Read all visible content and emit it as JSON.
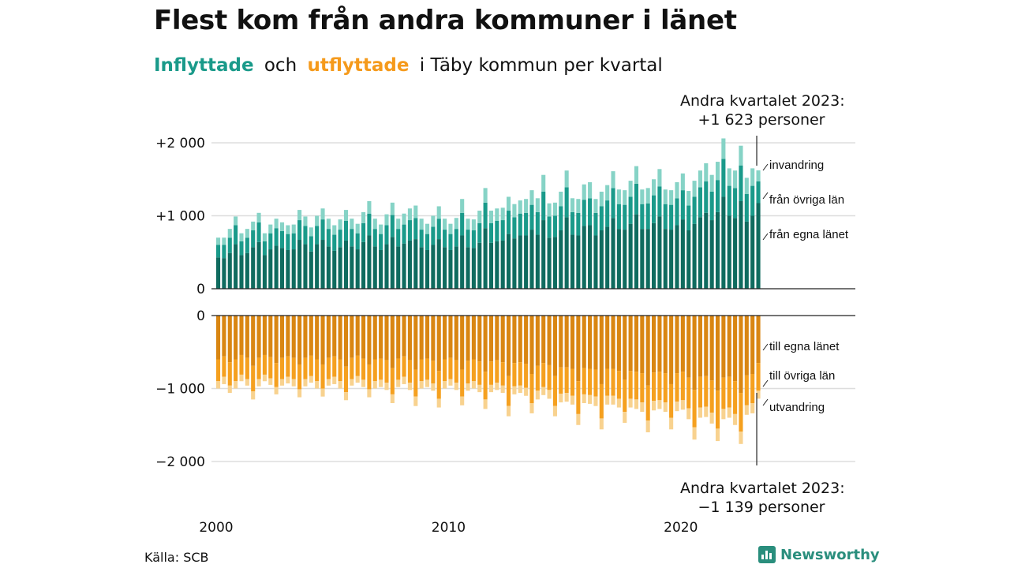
{
  "header": {
    "title": "Flest kom från andra kommuner i länet",
    "subtitle_in": "Inflyttade",
    "subtitle_and": "och",
    "subtitle_out": "utflyttade",
    "subtitle_rest": "i Täby kommun per kvartal"
  },
  "callouts": {
    "top_line1": "Andra kvartalet 2023:",
    "top_line2": "+1 623 personer",
    "bottom_line1": "Andra kvartalet 2023:",
    "bottom_line2": "−1 139 personer"
  },
  "footer": {
    "source": "Källa: SCB",
    "brand": "Newsworthy"
  },
  "colors": {
    "in_egna": "#0f6b5f",
    "in_ovriga": "#1a9a8a",
    "in_invandring": "#86d3c6",
    "out_egna": "#d98612",
    "out_ovriga": "#f5a01f",
    "out_utvandring": "#f8d28f",
    "subtitle_in": "#1a9a8a",
    "subtitle_out": "#f59a1b",
    "brand": "#2a8e7d"
  },
  "chart_data": {
    "type": "bar",
    "stacked": true,
    "x_start": "2000 Q1",
    "x_end": "2023 Q2",
    "frequency": "quarterly",
    "x_tick_labels": [
      "2000",
      "2010",
      "2020"
    ],
    "y_ticks_top": [
      "+2 000",
      "+1 000",
      "0"
    ],
    "y_ticks_bottom": [
      "0",
      "−1 000",
      "−2 000"
    ],
    "grid": true,
    "panels": [
      {
        "name": "Inflyttade",
        "ylim": [
          0,
          2000
        ],
        "total_series": [
          700,
          700,
          820,
          990,
          760,
          820,
          920,
          1040,
          760,
          880,
          960,
          910,
          870,
          880,
          1080,
          990,
          840,
          1000,
          1100,
          960,
          870,
          950,
          1080,
          960,
          890,
          1050,
          1200,
          960,
          880,
          1020,
          1180,
          960,
          1030,
          1100,
          1140,
          960,
          890,
          1000,
          1130,
          960,
          890,
          970,
          1230,
          960,
          950,
          1070,
          1380,
          1070,
          1100,
          1110,
          1260,
          1160,
          1210,
          1230,
          1350,
          1240,
          1560,
          1170,
          1180,
          1330,
          1620,
          1240,
          1230,
          1430,
          1460,
          1230,
          1330,
          1420,
          1610,
          1360,
          1350,
          1480,
          1680,
          1360,
          1380,
          1500,
          1640,
          1360,
          1350,
          1460,
          1580,
          1340,
          1480,
          1620,
          1720,
          1560,
          1740,
          2060,
          1650,
          1620,
          1960,
          1520,
          1650,
          1623
        ],
        "series": [
          {
            "name": "invandring",
            "values": [
              100,
              100,
              120,
              120,
              110,
              120,
              120,
              130,
              110,
              120,
              130,
              120,
              120,
              120,
              140,
              130,
              120,
              140,
              150,
              140,
              130,
              140,
              150,
              140,
              130,
              150,
              170,
              140,
              130,
              150,
              170,
              140,
              150,
              160,
              170,
              150,
              140,
              150,
              170,
              150,
              140,
              150,
              190,
              150,
              150,
              170,
              200,
              170,
              170,
              170,
              190,
              180,
              180,
              190,
              200,
              190,
              230,
              180,
              180,
              200,
              230,
              190,
              190,
              210,
              220,
              190,
              200,
              210,
              230,
              200,
              200,
              220,
              240,
              200,
              210,
              220,
              240,
              200,
              200,
              220,
              230,
              200,
              220,
              230,
              250,
              230,
              250,
              280,
              240,
              240,
              270,
              220,
              240,
              150
            ]
          },
          {
            "name": "från övriga län",
            "values": [
              170,
              180,
              210,
              260,
              190,
              210,
              230,
              270,
              190,
              220,
              240,
              230,
              220,
              220,
              270,
              250,
              210,
              250,
              280,
              240,
              220,
              240,
              270,
              240,
              220,
              260,
              300,
              240,
              220,
              260,
              300,
              240,
              260,
              280,
              290,
              240,
              220,
              250,
              280,
              240,
              220,
              240,
              310,
              240,
              240,
              270,
              350,
              270,
              280,
              280,
              320,
              290,
              300,
              310,
              340,
              310,
              390,
              290,
              290,
              330,
              410,
              310,
              310,
              360,
              370,
              310,
              330,
              360,
              410,
              340,
              340,
              370,
              420,
              340,
              350,
              380,
              410,
              340,
              340,
              370,
              400,
              340,
              370,
              410,
              430,
              390,
              440,
              520,
              410,
              410,
              490,
              380,
              410,
              300
            ]
          },
          {
            "name": "från egna länet",
            "values": [
              430,
              420,
              490,
              610,
              460,
              490,
              570,
              640,
              460,
              540,
              590,
              560,
              530,
              540,
              670,
              610,
              510,
              610,
              670,
              580,
              520,
              570,
              660,
              580,
              540,
              640,
              730,
              580,
              530,
              610,
              710,
              580,
              620,
              660,
              680,
              570,
              530,
              600,
              680,
              570,
              530,
              580,
              730,
              570,
              560,
              630,
              830,
              630,
              650,
              660,
              750,
              690,
              730,
              730,
              810,
              740,
              940,
              700,
              710,
              800,
              980,
              740,
              730,
              860,
              870,
              730,
              800,
              850,
              970,
              820,
              810,
              890,
              1020,
              820,
              820,
              900,
              990,
              820,
              810,
              870,
              950,
              800,
              890,
              980,
              1040,
              940,
              1050,
              1260,
              1000,
              970,
              1200,
              920,
              1000,
              1173
            ]
          }
        ]
      },
      {
        "name": "Utflyttade",
        "ylim": [
          -2000,
          0
        ],
        "total_series": [
          -1000,
          -940,
          -1060,
          -1000,
          -900,
          -960,
          -1150,
          -970,
          -900,
          -950,
          -1080,
          -960,
          -930,
          -970,
          -1120,
          -970,
          -920,
          -1000,
          -1110,
          -960,
          -940,
          -1000,
          -1160,
          -960,
          -920,
          -980,
          -1120,
          -1000,
          -980,
          -1020,
          -1200,
          -980,
          -940,
          -1020,
          -1240,
          -1000,
          -980,
          -1030,
          -1260,
          -1000,
          -960,
          -1020,
          -1230,
          -1030,
          -1000,
          -1050,
          -1280,
          -1050,
          -1020,
          -1060,
          -1380,
          -1080,
          -1060,
          -1100,
          -1340,
          -1150,
          -1090,
          -1140,
          -1380,
          -1190,
          -1180,
          -1220,
          -1500,
          -1200,
          -1210,
          -1240,
          -1560,
          -1220,
          -1220,
          -1260,
          -1470,
          -1260,
          -1280,
          -1320,
          -1600,
          -1300,
          -1280,
          -1320,
          -1560,
          -1310,
          -1290,
          -1420,
          -1700,
          -1400,
          -1390,
          -1480,
          -1720,
          -1420,
          -1400,
          -1500,
          -1760,
          -1360,
          -1340,
          -1139
        ],
        "series": [
          {
            "name": "till egna länet",
            "values": [
              -600,
              -560,
              -640,
              -600,
              -540,
              -580,
              -690,
              -580,
              -540,
              -570,
              -650,
              -580,
              -560,
              -580,
              -670,
              -580,
              -550,
              -600,
              -670,
              -580,
              -560,
              -600,
              -700,
              -580,
              -550,
              -590,
              -670,
              -600,
              -590,
              -610,
              -720,
              -590,
              -560,
              -610,
              -740,
              -600,
              -590,
              -620,
              -760,
              -600,
              -580,
              -610,
              -740,
              -620,
              -600,
              -630,
              -770,
              -630,
              -610,
              -640,
              -830,
              -650,
              -640,
              -660,
              -800,
              -690,
              -650,
              -680,
              -830,
              -710,
              -710,
              -730,
              -900,
              -720,
              -730,
              -740,
              -940,
              -730,
              -730,
              -760,
              -880,
              -760,
              -770,
              -790,
              -960,
              -780,
              -770,
              -790,
              -940,
              -790,
              -770,
              -850,
              -1020,
              -840,
              -830,
              -890,
              -1030,
              -850,
              -840,
              -900,
              -1060,
              -820,
              -800,
              -650
            ]
          },
          {
            "name": "till övriga län",
            "values": [
              -300,
              -280,
              -320,
              -300,
              -270,
              -290,
              -350,
              -290,
              -270,
              -290,
              -330,
              -290,
              -280,
              -290,
              -340,
              -290,
              -280,
              -300,
              -330,
              -290,
              -280,
              -300,
              -350,
              -290,
              -280,
              -290,
              -340,
              -300,
              -290,
              -310,
              -360,
              -290,
              -280,
              -310,
              -370,
              -300,
              -290,
              -310,
              -380,
              -300,
              -290,
              -310,
              -370,
              -310,
              -300,
              -320,
              -380,
              -320,
              -310,
              -320,
              -410,
              -320,
              -320,
              -330,
              -400,
              -340,
              -330,
              -340,
              -410,
              -360,
              -350,
              -370,
              -450,
              -360,
              -360,
              -370,
              -470,
              -370,
              -370,
              -380,
              -440,
              -380,
              -380,
              -400,
              -480,
              -390,
              -390,
              -400,
              -460,
              -390,
              -390,
              -420,
              -510,
              -420,
              -420,
              -440,
              -520,
              -430,
              -420,
              -450,
              -530,
              -410,
              -400,
              -380
            ]
          },
          {
            "name": "utvandring",
            "values": [
              -100,
              -100,
              -100,
              -100,
              -90,
              -90,
              -110,
              -100,
              -90,
              -90,
              -100,
              -90,
              -90,
              -100,
              -110,
              -100,
              -90,
              -100,
              -110,
              -90,
              -100,
              -100,
              -110,
              -90,
              -90,
              -100,
              -110,
              -100,
              -100,
              -100,
              -120,
              -100,
              -100,
              -100,
              -130,
              -100,
              -100,
              -100,
              -120,
              -100,
              -90,
              -100,
              -120,
              -100,
              -100,
              -100,
              -130,
              -100,
              -100,
              -100,
              -140,
              -110,
              -100,
              -110,
              -140,
              -120,
              -110,
              -120,
              -140,
              -120,
              -120,
              -120,
              -150,
              -120,
              -120,
              -130,
              -150,
              -120,
              -120,
              -120,
              -150,
              -120,
              -130,
              -130,
              -160,
              -130,
              -120,
              -130,
              -160,
              -130,
              -130,
              -150,
              -170,
              -140,
              -140,
              -150,
              -170,
              -140,
              -140,
              -150,
              -170,
              -130,
              -140,
              -109
            ]
          }
        ]
      }
    ],
    "end_labels": {
      "top": [
        "invandring",
        "från övriga län",
        "från egna länet"
      ],
      "bottom": [
        "till egna länet",
        "till övriga län",
        "utvandring"
      ]
    }
  }
}
